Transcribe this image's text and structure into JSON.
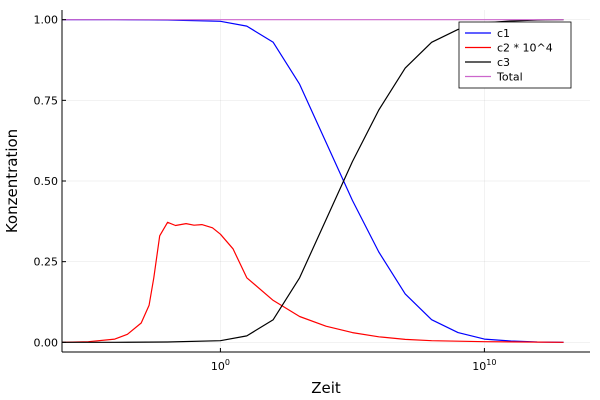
{
  "chart_data": {
    "type": "line",
    "xlabel": "Zeit",
    "ylabel": "Konzentration",
    "x_scale": "log10",
    "xlim": [
      1e-06,
      100000000000000.0
    ],
    "ylim": [
      -0.03,
      1.03
    ],
    "grid": true,
    "legend_position": "top-right",
    "y_ticks": [
      0.0,
      0.25,
      0.5,
      0.75,
      1.0
    ],
    "y_tick_labels": [
      "0.00",
      "0.25",
      "0.50",
      "0.75",
      "1.00"
    ],
    "x_ticks": [
      1,
      10000000000.0
    ],
    "x_tick_labels": [
      {
        "base": "10",
        "exp": "0"
      },
      {
        "base": "10",
        "exp": "10"
      }
    ],
    "series": [
      {
        "name": "c1",
        "color": "#0000ff",
        "x": [
          1e-06,
          0.0001,
          0.01,
          1,
          10,
          100,
          1000,
          10000.0,
          100000.0,
          1000000.0,
          10000000.0,
          100000000.0,
          1000000000.0,
          10000000000.0,
          100000000000.0,
          1000000000000.0,
          10000000000000.0
        ],
        "y": [
          1.0,
          1.0,
          0.999,
          0.995,
          0.98,
          0.93,
          0.8,
          0.62,
          0.44,
          0.28,
          0.15,
          0.07,
          0.03,
          0.01,
          0.004,
          0.001,
          0.0
        ]
      },
      {
        "name": "c2 * 10^4",
        "color": "#ff0000",
        "x": [
          1e-06,
          1e-05,
          0.0001,
          0.0003,
          0.001,
          0.002,
          0.003,
          0.005,
          0.01,
          0.02,
          0.05,
          0.1,
          0.2,
          0.5,
          1,
          3,
          10,
          100,
          1000,
          10000.0,
          100000.0,
          1000000.0,
          10000000.0,
          100000000.0,
          10000000000.0,
          10000000000000.0
        ],
        "y": [
          0.0,
          0.002,
          0.01,
          0.025,
          0.06,
          0.115,
          0.2,
          0.33,
          0.372,
          0.362,
          0.368,
          0.363,
          0.365,
          0.355,
          0.335,
          0.29,
          0.2,
          0.13,
          0.08,
          0.05,
          0.03,
          0.017,
          0.009,
          0.005,
          0.002,
          0.0
        ]
      },
      {
        "name": "c3",
        "color": "#000000",
        "x": [
          1e-06,
          0.0001,
          0.01,
          1,
          10,
          100,
          1000,
          10000.0,
          100000.0,
          1000000.0,
          10000000.0,
          100000000.0,
          1000000000.0,
          10000000000.0,
          100000000000.0,
          1000000000000.0,
          10000000000000.0
        ],
        "y": [
          0.0,
          0.0,
          0.001,
          0.005,
          0.02,
          0.07,
          0.2,
          0.38,
          0.56,
          0.72,
          0.85,
          0.93,
          0.97,
          0.99,
          0.996,
          0.999,
          1.0
        ]
      },
      {
        "name": "Total",
        "color": "#cc66cc",
        "x": [
          1e-06,
          10000000000000.0
        ],
        "y": [
          1.0,
          1.0
        ]
      }
    ]
  }
}
